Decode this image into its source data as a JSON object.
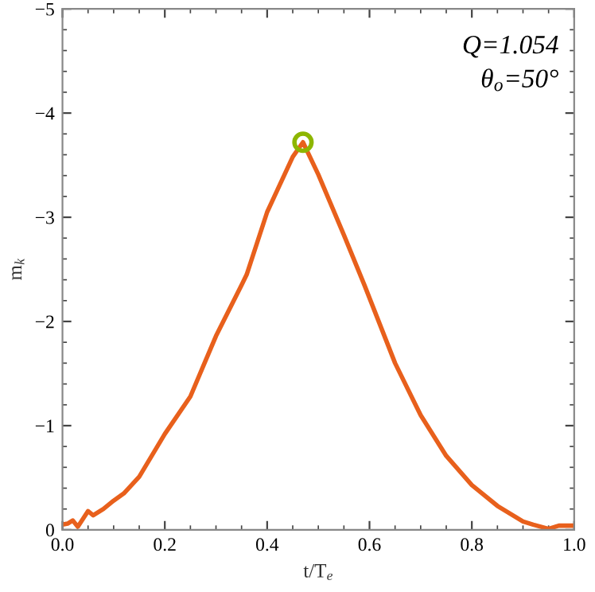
{
  "chart_data": {
    "type": "line",
    "xlabel": "t/T$_{e}$",
    "ylabel": "m$_{k}$",
    "annotations": [
      "Q=1.054",
      "θ$_{o}$=50°"
    ],
    "series": [
      {
        "color": "#e8601c",
        "x": [
          0.0,
          0.01,
          0.02,
          0.03,
          0.05,
          0.06,
          0.08,
          0.1,
          0.12,
          0.15,
          0.2,
          0.25,
          0.3,
          0.35,
          0.36,
          0.4,
          0.45,
          0.47,
          0.5,
          0.55,
          0.59,
          0.65,
          0.7,
          0.75,
          0.8,
          0.85,
          0.9,
          0.92,
          0.95,
          0.97,
          1.0
        ],
        "values": [
          -0.05,
          -0.06,
          -0.09,
          -0.03,
          -0.18,
          -0.14,
          -0.2,
          -0.28,
          -0.35,
          -0.51,
          -0.92,
          -1.28,
          -1.86,
          -2.35,
          -2.45,
          -3.05,
          -3.58,
          -3.72,
          -3.41,
          -2.83,
          -2.35,
          -1.6,
          -1.1,
          -0.71,
          -0.43,
          -0.23,
          -0.08,
          -0.05,
          -0.01,
          -0.04,
          -0.04
        ]
      },
      {
        "type": "scatter",
        "color": "#8db600",
        "marker": "circle",
        "x": [
          0.47
        ],
        "values": [
          -3.72
        ]
      }
    ],
    "xlim": [
      0.0,
      1.0
    ],
    "ylim": [
      0,
      -5
    ],
    "xticks": [
      {
        "value": 0.0,
        "label": "0.0"
      },
      {
        "value": 0.2,
        "label": "0.2"
      },
      {
        "value": 0.4,
        "label": "0.4"
      },
      {
        "value": 0.6,
        "label": "0.6"
      },
      {
        "value": 0.8,
        "label": "0.8"
      },
      {
        "value": 1.0,
        "label": "1.0"
      }
    ],
    "yticks": [
      0,
      {
        "value": -1,
        "label": "−1"
      },
      {
        "value": -2,
        "label": "−2"
      },
      {
        "value": -3,
        "label": "−3"
      },
      {
        "value": -4,
        "label": "−4"
      },
      {
        "value": -5,
        "label": "−5"
      }
    ]
  }
}
